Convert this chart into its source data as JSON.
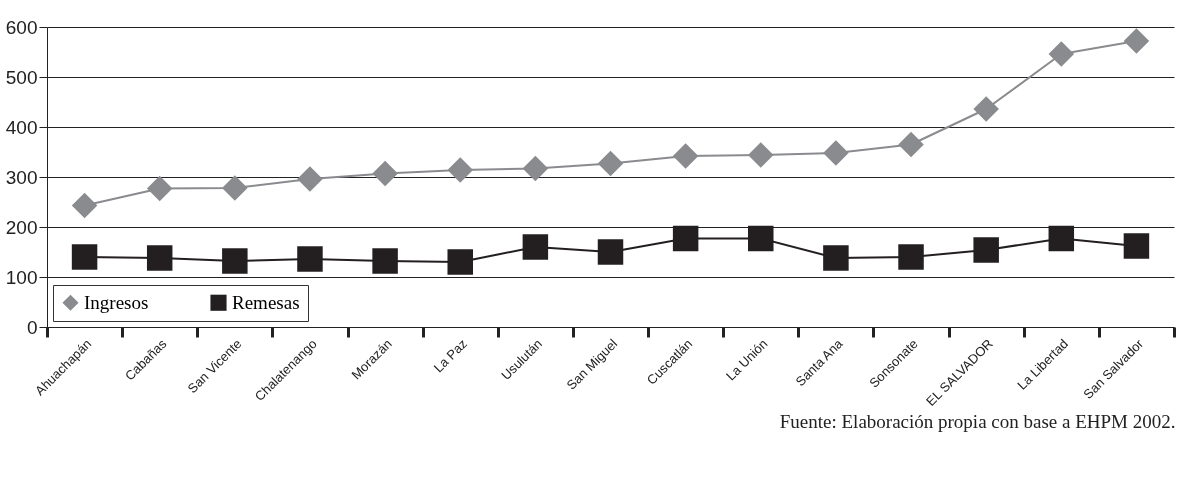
{
  "chart_data": {
    "type": "line",
    "categories": [
      "Ahuachapán",
      "Cabañas",
      "San Vicente",
      "Chalatenango",
      "Morazán",
      "La Paz",
      "Usulután",
      "San Miguel",
      "Cuscatlán",
      "La Unión",
      "Santa Ana",
      "Sonsonate",
      "EL SALVADOR",
      "La Libertad",
      "San Salvador"
    ],
    "series": [
      {
        "name": "Ingresos",
        "color": "#8a8b8e",
        "marker": "diamond",
        "values": [
          243,
          277,
          278,
          296,
          307,
          314,
          317,
          327,
          342,
          344,
          348,
          365,
          436,
          546,
          572
        ]
      },
      {
        "name": "Remesas",
        "color": "#231f20",
        "marker": "square",
        "values": [
          140,
          138,
          132,
          136,
          132,
          130,
          160,
          150,
          177,
          177,
          138,
          140,
          154,
          177,
          162
        ]
      }
    ],
    "ylim": [
      0,
      600
    ],
    "yticks": [
      0,
      100,
      200,
      300,
      400,
      500,
      600
    ],
    "grid": "y",
    "legend": "bottom left",
    "line_style": "solid",
    "annotations": [
      "Fuente: Elaboración propia con base a EHPM 2002."
    ]
  }
}
